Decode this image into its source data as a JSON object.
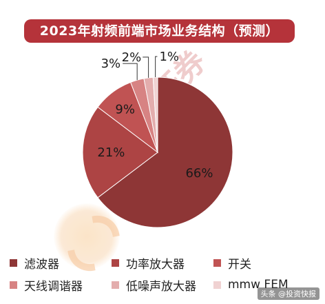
{
  "chart_data": {
    "type": "pie",
    "title": "2023年射频前端市场业务结构（预测）",
    "slices": [
      {
        "label": "滤波器",
        "value": 66,
        "display": "66%",
        "color": "#8e3636"
      },
      {
        "label": "功率放大器",
        "value": 21,
        "display": "21%",
        "color": "#ad4444"
      },
      {
        "label": "开关",
        "value": 9,
        "display": "9%",
        "color": "#c05353"
      },
      {
        "label": "天线调谐器",
        "value": 3,
        "display": "3%",
        "color": "#d78383"
      },
      {
        "label": "低噪声放大器",
        "value": 2,
        "display": "2%",
        "color": "#e3adad"
      },
      {
        "label": "mmw FEM",
        "value": 1,
        "display": "1%",
        "color": "#f0d2d2"
      }
    ],
    "legend_position": "bottom"
  },
  "watermark": {
    "text": "西南证券",
    "footer": "头条 @投资快报"
  }
}
